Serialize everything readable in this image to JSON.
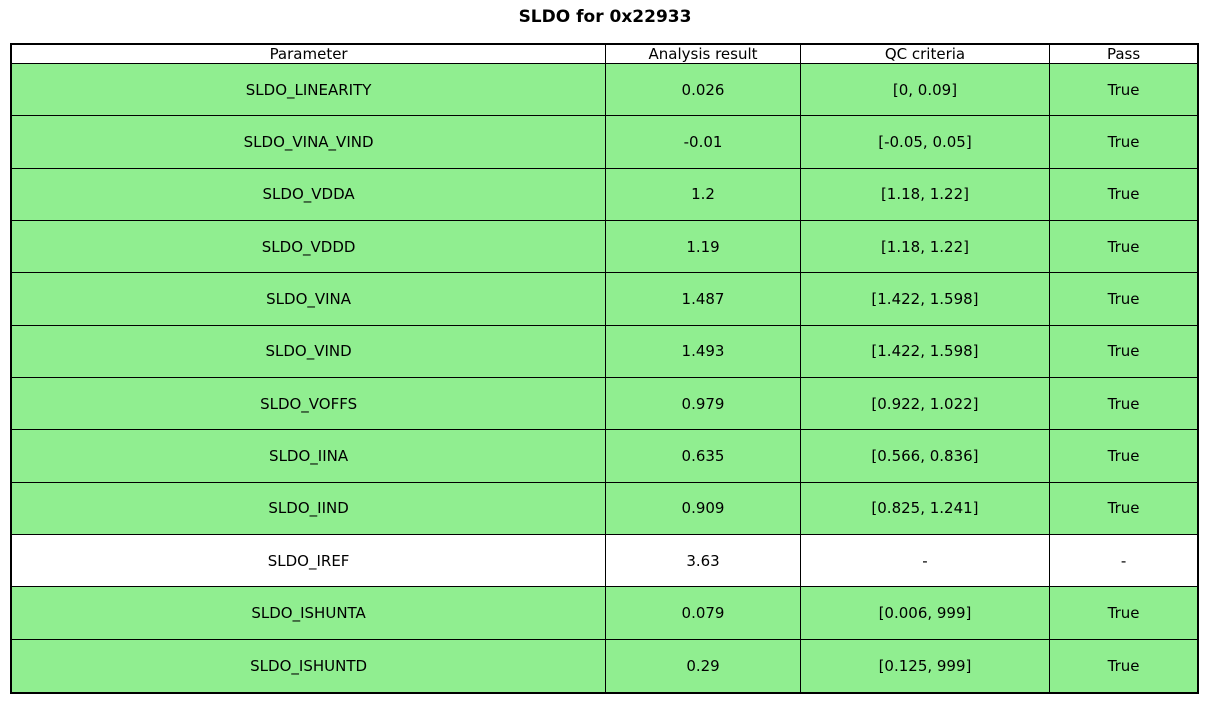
{
  "figure_title": "SLDO for 0x22933",
  "colors": {
    "pass_row": "#90ee90",
    "neutral_row": "#ffffff",
    "header_bg": "#ffffff",
    "border": "#000000",
    "text": "#000000"
  },
  "chart_data": {
    "type": "table",
    "title": "SLDO for 0x22933",
    "columns": [
      "Parameter",
      "Analysis result",
      "QC criteria",
      "Pass"
    ],
    "rows": [
      {
        "parameter": "SLDO_LINEARITY",
        "analysis_result": "0.026",
        "qc_criteria": "[0, 0.09]",
        "pass": "True",
        "row_color": "#90ee90"
      },
      {
        "parameter": "SLDO_VINA_VIND",
        "analysis_result": "-0.01",
        "qc_criteria": "[-0.05, 0.05]",
        "pass": "True",
        "row_color": "#90ee90"
      },
      {
        "parameter": "SLDO_VDDA",
        "analysis_result": "1.2",
        "qc_criteria": "[1.18, 1.22]",
        "pass": "True",
        "row_color": "#90ee90"
      },
      {
        "parameter": "SLDO_VDDD",
        "analysis_result": "1.19",
        "qc_criteria": "[1.18, 1.22]",
        "pass": "True",
        "row_color": "#90ee90"
      },
      {
        "parameter": "SLDO_VINA",
        "analysis_result": "1.487",
        "qc_criteria": "[1.422, 1.598]",
        "pass": "True",
        "row_color": "#90ee90"
      },
      {
        "parameter": "SLDO_VIND",
        "analysis_result": "1.493",
        "qc_criteria": "[1.422, 1.598]",
        "pass": "True",
        "row_color": "#90ee90"
      },
      {
        "parameter": "SLDO_VOFFS",
        "analysis_result": "0.979",
        "qc_criteria": "[0.922, 1.022]",
        "pass": "True",
        "row_color": "#90ee90"
      },
      {
        "parameter": "SLDO_IINA",
        "analysis_result": "0.635",
        "qc_criteria": "[0.566, 0.836]",
        "pass": "True",
        "row_color": "#90ee90"
      },
      {
        "parameter": "SLDO_IIND",
        "analysis_result": "0.909",
        "qc_criteria": "[0.825, 1.241]",
        "pass": "True",
        "row_color": "#90ee90"
      },
      {
        "parameter": "SLDO_IREF",
        "analysis_result": "3.63",
        "qc_criteria": "-",
        "pass": "-",
        "row_color": "#ffffff"
      },
      {
        "parameter": "SLDO_ISHUNTA",
        "analysis_result": "0.079",
        "qc_criteria": "[0.006, 999]",
        "pass": "True",
        "row_color": "#90ee90"
      },
      {
        "parameter": "SLDO_ISHUNTD",
        "analysis_result": "0.29",
        "qc_criteria": "[0.125, 999]",
        "pass": "True",
        "row_color": "#90ee90"
      }
    ]
  }
}
